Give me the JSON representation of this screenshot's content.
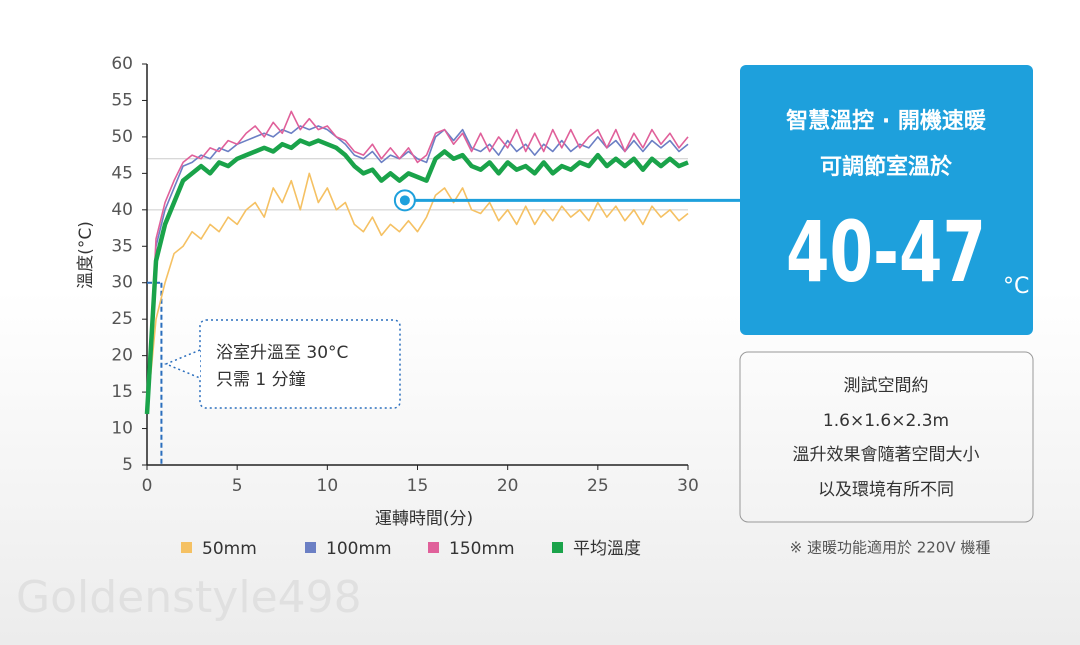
{
  "chart_data": {
    "type": "line",
    "y_label": "溫度(°C)",
    "x_label": "運轉時間(分)",
    "x": [
      0,
      0.5,
      1,
      1.5,
      2,
      2.5,
      3,
      3.5,
      4,
      4.5,
      5,
      5.5,
      6,
      6.5,
      7,
      7.5,
      8,
      8.5,
      9,
      9.5,
      10,
      10.5,
      11,
      11.5,
      12,
      12.5,
      13,
      13.5,
      14,
      14.5,
      15,
      15.5,
      16,
      16.5,
      17,
      17.5,
      18,
      18.5,
      19,
      19.5,
      20,
      20.5,
      21,
      21.5,
      22,
      22.5,
      23,
      23.5,
      24,
      24.5,
      25,
      25.5,
      26,
      26.5,
      27,
      27.5,
      28,
      28.5,
      29,
      29.5,
      30
    ],
    "series": [
      {
        "name": "50mm",
        "color": "#f5c163",
        "values": [
          12,
          25,
          30,
          34,
          35,
          37,
          36,
          38,
          37,
          39,
          38,
          40,
          41,
          39,
          43,
          41,
          44,
          40,
          45,
          41,
          43,
          40,
          41,
          38,
          37,
          39,
          36.5,
          38,
          37,
          38.5,
          37,
          39,
          42,
          43,
          41,
          43,
          40,
          39.5,
          41,
          38.5,
          40,
          38,
          40.5,
          38,
          40,
          38.5,
          40.5,
          39,
          40,
          38.5,
          41,
          39,
          40.5,
          38.5,
          40,
          38,
          40.5,
          39,
          40,
          38.5,
          39.5
        ]
      },
      {
        "name": "100mm",
        "color": "#6b7fc4",
        "values": [
          12,
          35,
          40,
          43,
          46,
          46.5,
          47.5,
          47,
          48.5,
          48,
          49,
          49.5,
          50,
          50.5,
          50,
          51,
          50.5,
          51.5,
          51,
          51.5,
          51,
          50,
          49,
          47.5,
          47,
          48,
          46.5,
          47.5,
          47,
          48,
          47,
          46.5,
          50,
          51,
          49.5,
          51,
          48.5,
          48,
          49,
          47.5,
          49.5,
          48,
          49,
          47.5,
          49,
          48,
          49.5,
          48,
          49,
          48.5,
          50,
          48.5,
          49.5,
          48,
          49.5,
          48,
          49.5,
          48.5,
          49.5,
          48,
          49
        ]
      },
      {
        "name": "150mm",
        "color": "#e0609a",
        "values": [
          12,
          36,
          41,
          44,
          46.5,
          47.5,
          47,
          48.5,
          48,
          49.5,
          49,
          50.5,
          51.5,
          50,
          52,
          50.5,
          53.5,
          51,
          52.5,
          51,
          51.5,
          50,
          49.5,
          48,
          47.5,
          49,
          47,
          48.5,
          47,
          48.5,
          46.5,
          47.5,
          50.5,
          51,
          49,
          50.5,
          48,
          50.5,
          48,
          50,
          48.5,
          51,
          48,
          50.5,
          48,
          51,
          48.5,
          51,
          48.5,
          50,
          51,
          48.5,
          51,
          48,
          50.5,
          48.5,
          51,
          49,
          50.5,
          48.5,
          50
        ]
      },
      {
        "name": "平均溫度",
        "color": "#1aa34a",
        "values": [
          12,
          33,
          38,
          41,
          44,
          45,
          46,
          45,
          46.5,
          46,
          47,
          47.5,
          48,
          48.5,
          48,
          49,
          48.5,
          49.5,
          49,
          49.5,
          49,
          48.5,
          47.5,
          46,
          45,
          45.5,
          44,
          45,
          44,
          45,
          44.5,
          44,
          47,
          48,
          47,
          47.5,
          46,
          45.5,
          46.5,
          45,
          46.5,
          45.5,
          46,
          45,
          46.5,
          45,
          46,
          45.5,
          46.5,
          46,
          47.5,
          46,
          47,
          46,
          47,
          45.5,
          47,
          46,
          47,
          46,
          46.5
        ]
      }
    ],
    "xlim": [
      0,
      30
    ],
    "xticks": [
      0,
      5,
      10,
      15,
      20,
      25,
      30
    ],
    "ylim": [
      5,
      60
    ],
    "yticks": [
      5,
      10,
      15,
      20,
      25,
      30,
      35,
      40,
      45,
      50,
      55,
      60
    ],
    "reference_lines": [
      40,
      47
    ],
    "marker": {
      "x": 0.8,
      "y": 30
    },
    "pointer": {
      "x": 14.3,
      "y": 41.3
    },
    "callout": [
      "浴室升溫至 30°C",
      "只需 1 分鐘"
    ]
  },
  "panel": {
    "headline": [
      "智慧溫控 · 開機速暖",
      "可調節室溫於"
    ],
    "range": "40-47",
    "unit": "°C",
    "info": [
      "測試空間約",
      "1.6×1.6×2.3m",
      "溫升效果會隨著空間大小",
      "以及環境有所不同"
    ],
    "note": "※ 速暖功能適用於 220V 機種"
  },
  "watermark": "Goldenstyle498"
}
